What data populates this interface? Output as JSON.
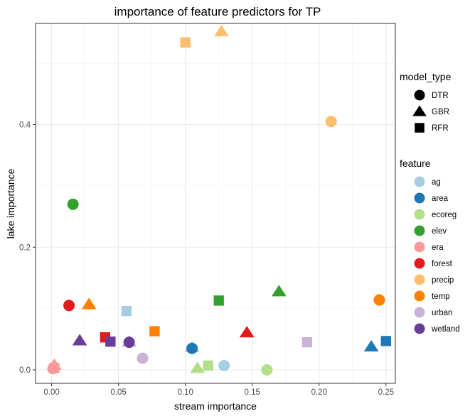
{
  "chart_data": {
    "type": "scatter",
    "title": "importance of feature predictors for TP",
    "xlabel": "stream importance",
    "ylabel": "lake importance",
    "xlim": [
      -0.012,
      0.257
    ],
    "ylim": [
      -0.022,
      0.565
    ],
    "xticks": [
      0.0,
      0.05,
      0.1,
      0.15,
      0.2,
      0.25
    ],
    "xtick_labels": [
      "0.00",
      "0.05",
      "0.10",
      "0.15",
      "0.20",
      "0.25"
    ],
    "yticks": [
      0.0,
      0.2,
      0.4
    ],
    "ytick_labels": [
      "0.0",
      "0.2",
      "0.4"
    ],
    "grid": true,
    "legends": [
      {
        "title": "model_type",
        "entries": [
          {
            "label": "DTR",
            "shape": "circle"
          },
          {
            "label": "GBR",
            "shape": "triangle"
          },
          {
            "label": "RFR",
            "shape": "square"
          }
        ]
      },
      {
        "title": "feature",
        "entries": [
          {
            "label": "ag",
            "color": "#A6CEE3"
          },
          {
            "label": "area",
            "color": "#1F78B4"
          },
          {
            "label": "ecoreg",
            "color": "#B2DF8A"
          },
          {
            "label": "elev",
            "color": "#33A02C"
          },
          {
            "label": "era",
            "color": "#FB9A99"
          },
          {
            "label": "forest",
            "color": "#E31A1C"
          },
          {
            "label": "precip",
            "color": "#FDBF6F"
          },
          {
            "label": "temp",
            "color": "#FF7F00"
          },
          {
            "label": "urban",
            "color": "#CAB2D6"
          },
          {
            "label": "wetland",
            "color": "#6A3D9A"
          }
        ]
      }
    ],
    "points": [
      {
        "feature": "ag",
        "model": "DTR",
        "x": 0.129,
        "y": 0.007
      },
      {
        "feature": "ag",
        "model": "GBR",
        "x": 0.105,
        "y": 0.037
      },
      {
        "feature": "ag",
        "model": "RFR",
        "x": 0.056,
        "y": 0.096
      },
      {
        "feature": "area",
        "model": "DTR",
        "x": 0.105,
        "y": 0.035
      },
      {
        "feature": "area",
        "model": "GBR",
        "x": 0.239,
        "y": 0.038
      },
      {
        "feature": "area",
        "model": "RFR",
        "x": 0.25,
        "y": 0.047
      },
      {
        "feature": "ecoreg",
        "model": "DTR",
        "x": 0.161,
        "y": 0.0
      },
      {
        "feature": "ecoreg",
        "model": "GBR",
        "x": 0.109,
        "y": 0.003
      },
      {
        "feature": "ecoreg",
        "model": "RFR",
        "x": 0.117,
        "y": 0.007
      },
      {
        "feature": "elev",
        "model": "DTR",
        "x": 0.016,
        "y": 0.27
      },
      {
        "feature": "elev",
        "model": "GBR",
        "x": 0.17,
        "y": 0.128
      },
      {
        "feature": "elev",
        "model": "RFR",
        "x": 0.125,
        "y": 0.113
      },
      {
        "feature": "era",
        "model": "DTR",
        "x": 0.001,
        "y": 0.002
      },
      {
        "feature": "era",
        "model": "GBR",
        "x": 0.002,
        "y": 0.008
      },
      {
        "feature": "era",
        "model": "RFR",
        "x": 0.002,
        "y": 0.003
      },
      {
        "feature": "forest",
        "model": "DTR",
        "x": 0.013,
        "y": 0.105
      },
      {
        "feature": "forest",
        "model": "GBR",
        "x": 0.146,
        "y": 0.061
      },
      {
        "feature": "forest",
        "model": "RFR",
        "x": 0.04,
        "y": 0.053
      },
      {
        "feature": "precip",
        "model": "DTR",
        "x": 0.209,
        "y": 0.405
      },
      {
        "feature": "precip",
        "model": "GBR",
        "x": 0.127,
        "y": 0.552
      },
      {
        "feature": "precip",
        "model": "RFR",
        "x": 0.1,
        "y": 0.534
      },
      {
        "feature": "temp",
        "model": "DTR",
        "x": 0.245,
        "y": 0.114
      },
      {
        "feature": "temp",
        "model": "GBR",
        "x": 0.028,
        "y": 0.107
      },
      {
        "feature": "temp",
        "model": "RFR",
        "x": 0.077,
        "y": 0.063
      },
      {
        "feature": "urban",
        "model": "DTR",
        "x": 0.068,
        "y": 0.019
      },
      {
        "feature": "urban",
        "model": "GBR",
        "x": 0.058,
        "y": 0.046
      },
      {
        "feature": "urban",
        "model": "RFR",
        "x": 0.191,
        "y": 0.045
      },
      {
        "feature": "wetland",
        "model": "DTR",
        "x": 0.058,
        "y": 0.045
      },
      {
        "feature": "wetland",
        "model": "GBR",
        "x": 0.021,
        "y": 0.048
      },
      {
        "feature": "wetland",
        "model": "RFR",
        "x": 0.044,
        "y": 0.046
      }
    ]
  }
}
